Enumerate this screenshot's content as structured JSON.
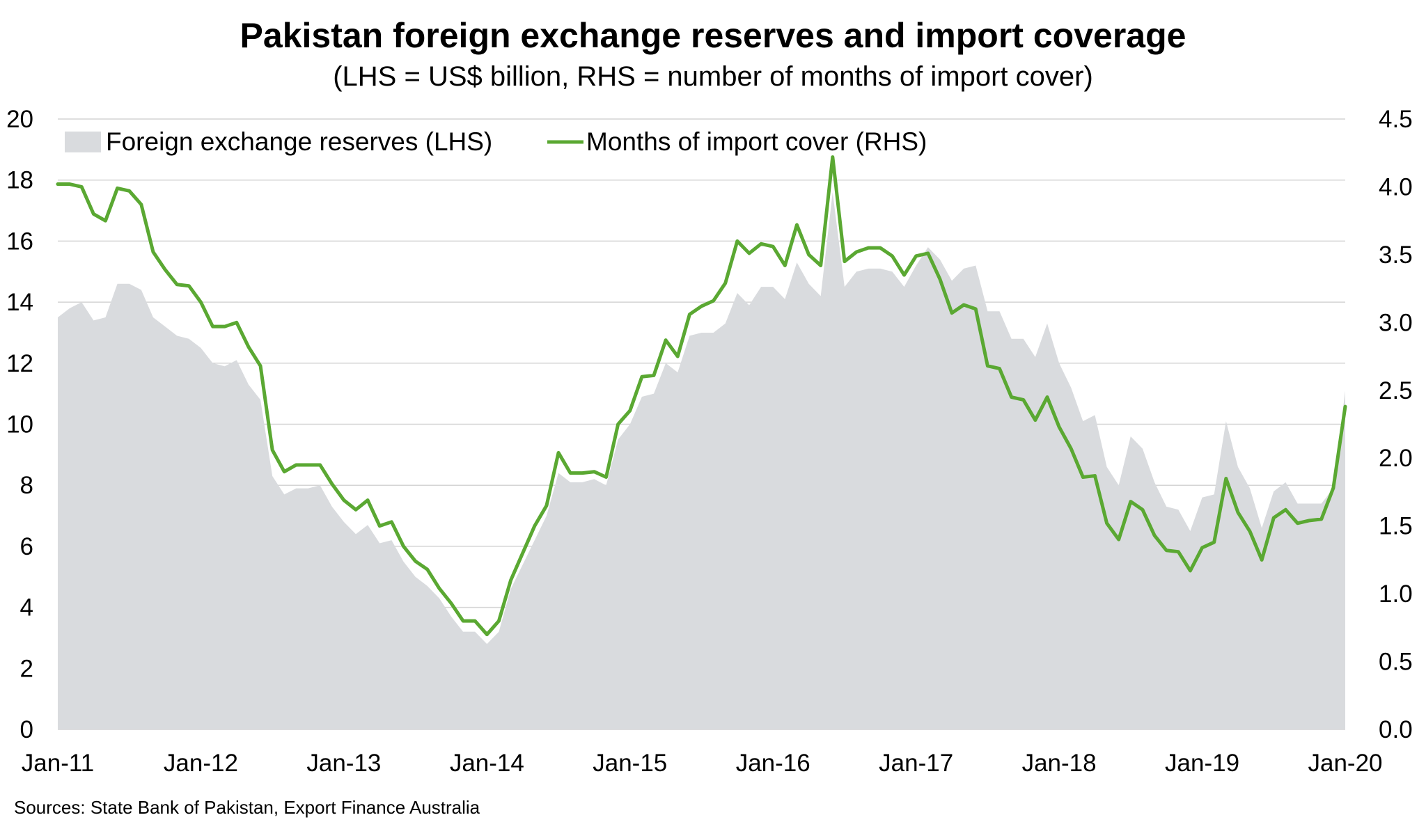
{
  "chart_data": {
    "type": "area",
    "title": "Pakistan foreign exchange reserves and import coverage",
    "subtitle": "(LHS = US$ billion, RHS = number of months of import cover)",
    "source": "Sources: State Bank of Pakistan, Export Finance Australia",
    "x_ticks": [
      "Jan-11",
      "Jan-12",
      "Jan-13",
      "Jan-14",
      "Jan-15",
      "Jan-16",
      "Jan-17",
      "Jan-18",
      "Jan-19",
      "Jan-20"
    ],
    "x_start": "Jan-11",
    "x_end": "Jan-20",
    "y_left": {
      "ticks": [
        "0",
        "2",
        "4",
        "6",
        "8",
        "10",
        "12",
        "14",
        "16",
        "18",
        "20"
      ],
      "range": [
        0,
        20
      ]
    },
    "y_right": {
      "ticks": [
        "0.0",
        "0.5",
        "1.0",
        "1.5",
        "2.0",
        "2.5",
        "3.0",
        "3.5",
        "4.0",
        "4.5"
      ],
      "range": [
        0,
        4.5
      ]
    },
    "grid": true,
    "legend_position": "top-left",
    "series": [
      {
        "name": "Foreign exchange reserves (LHS)",
        "axis": "left",
        "kind": "area",
        "color": "#d9dbde",
        "values": [
          13.5,
          13.8,
          14.0,
          13.4,
          13.5,
          14.6,
          14.6,
          14.4,
          13.5,
          13.2,
          12.9,
          12.8,
          12.5,
          12.0,
          11.9,
          12.1,
          11.3,
          10.8,
          8.3,
          7.7,
          7.9,
          7.9,
          8.0,
          7.3,
          6.8,
          6.4,
          6.7,
          6.1,
          6.2,
          5.5,
          5.0,
          4.7,
          4.3,
          3.7,
          3.2,
          3.2,
          2.8,
          3.2,
          4.6,
          5.4,
          6.2,
          7.0,
          8.4,
          8.1,
          8.1,
          8.2,
          8.0,
          9.5,
          10.0,
          10.9,
          11.0,
          12.0,
          11.7,
          12.9,
          13.0,
          13.0,
          13.3,
          14.3,
          13.9,
          14.5,
          14.5,
          14.1,
          15.3,
          14.6,
          14.2,
          17.6,
          14.5,
          15.0,
          15.1,
          15.1,
          15.0,
          14.5,
          15.2,
          15.8,
          15.4,
          14.7,
          15.1,
          15.2,
          13.7,
          13.7,
          12.8,
          12.8,
          12.2,
          13.3,
          12.0,
          11.2,
          10.1,
          10.3,
          8.6,
          8.0,
          9.6,
          9.2,
          8.1,
          7.3,
          7.2,
          6.5,
          7.6,
          7.7,
          10.1,
          8.6,
          7.9,
          6.6,
          7.8,
          8.1,
          7.4,
          7.4,
          7.4,
          7.9,
          11.1
        ]
      },
      {
        "name": "Months of import cover (RHS)",
        "axis": "right",
        "kind": "line",
        "color": "#5aa832",
        "values": [
          4.02,
          4.02,
          4.0,
          3.8,
          3.75,
          3.99,
          3.97,
          3.87,
          3.52,
          3.39,
          3.28,
          3.27,
          3.15,
          2.97,
          2.97,
          3.0,
          2.82,
          2.68,
          2.06,
          1.9,
          1.95,
          1.95,
          1.95,
          1.81,
          1.69,
          1.62,
          1.69,
          1.5,
          1.53,
          1.35,
          1.24,
          1.18,
          1.04,
          0.93,
          0.8,
          0.8,
          0.7,
          0.8,
          1.1,
          1.3,
          1.5,
          1.65,
          2.04,
          1.89,
          1.89,
          1.9,
          1.86,
          2.25,
          2.35,
          2.6,
          2.61,
          2.87,
          2.75,
          3.06,
          3.12,
          3.16,
          3.29,
          3.6,
          3.51,
          3.58,
          3.56,
          3.42,
          3.72,
          3.5,
          3.42,
          4.22,
          3.45,
          3.52,
          3.55,
          3.55,
          3.49,
          3.35,
          3.49,
          3.51,
          3.32,
          3.07,
          3.13,
          3.1,
          2.68,
          2.66,
          2.45,
          2.43,
          2.28,
          2.45,
          2.23,
          2.07,
          1.86,
          1.87,
          1.52,
          1.4,
          1.68,
          1.62,
          1.43,
          1.32,
          1.31,
          1.17,
          1.34,
          1.38,
          1.85,
          1.6,
          1.46,
          1.25,
          1.56,
          1.62,
          1.52,
          1.54,
          1.55,
          1.78,
          2.38
        ]
      }
    ]
  }
}
